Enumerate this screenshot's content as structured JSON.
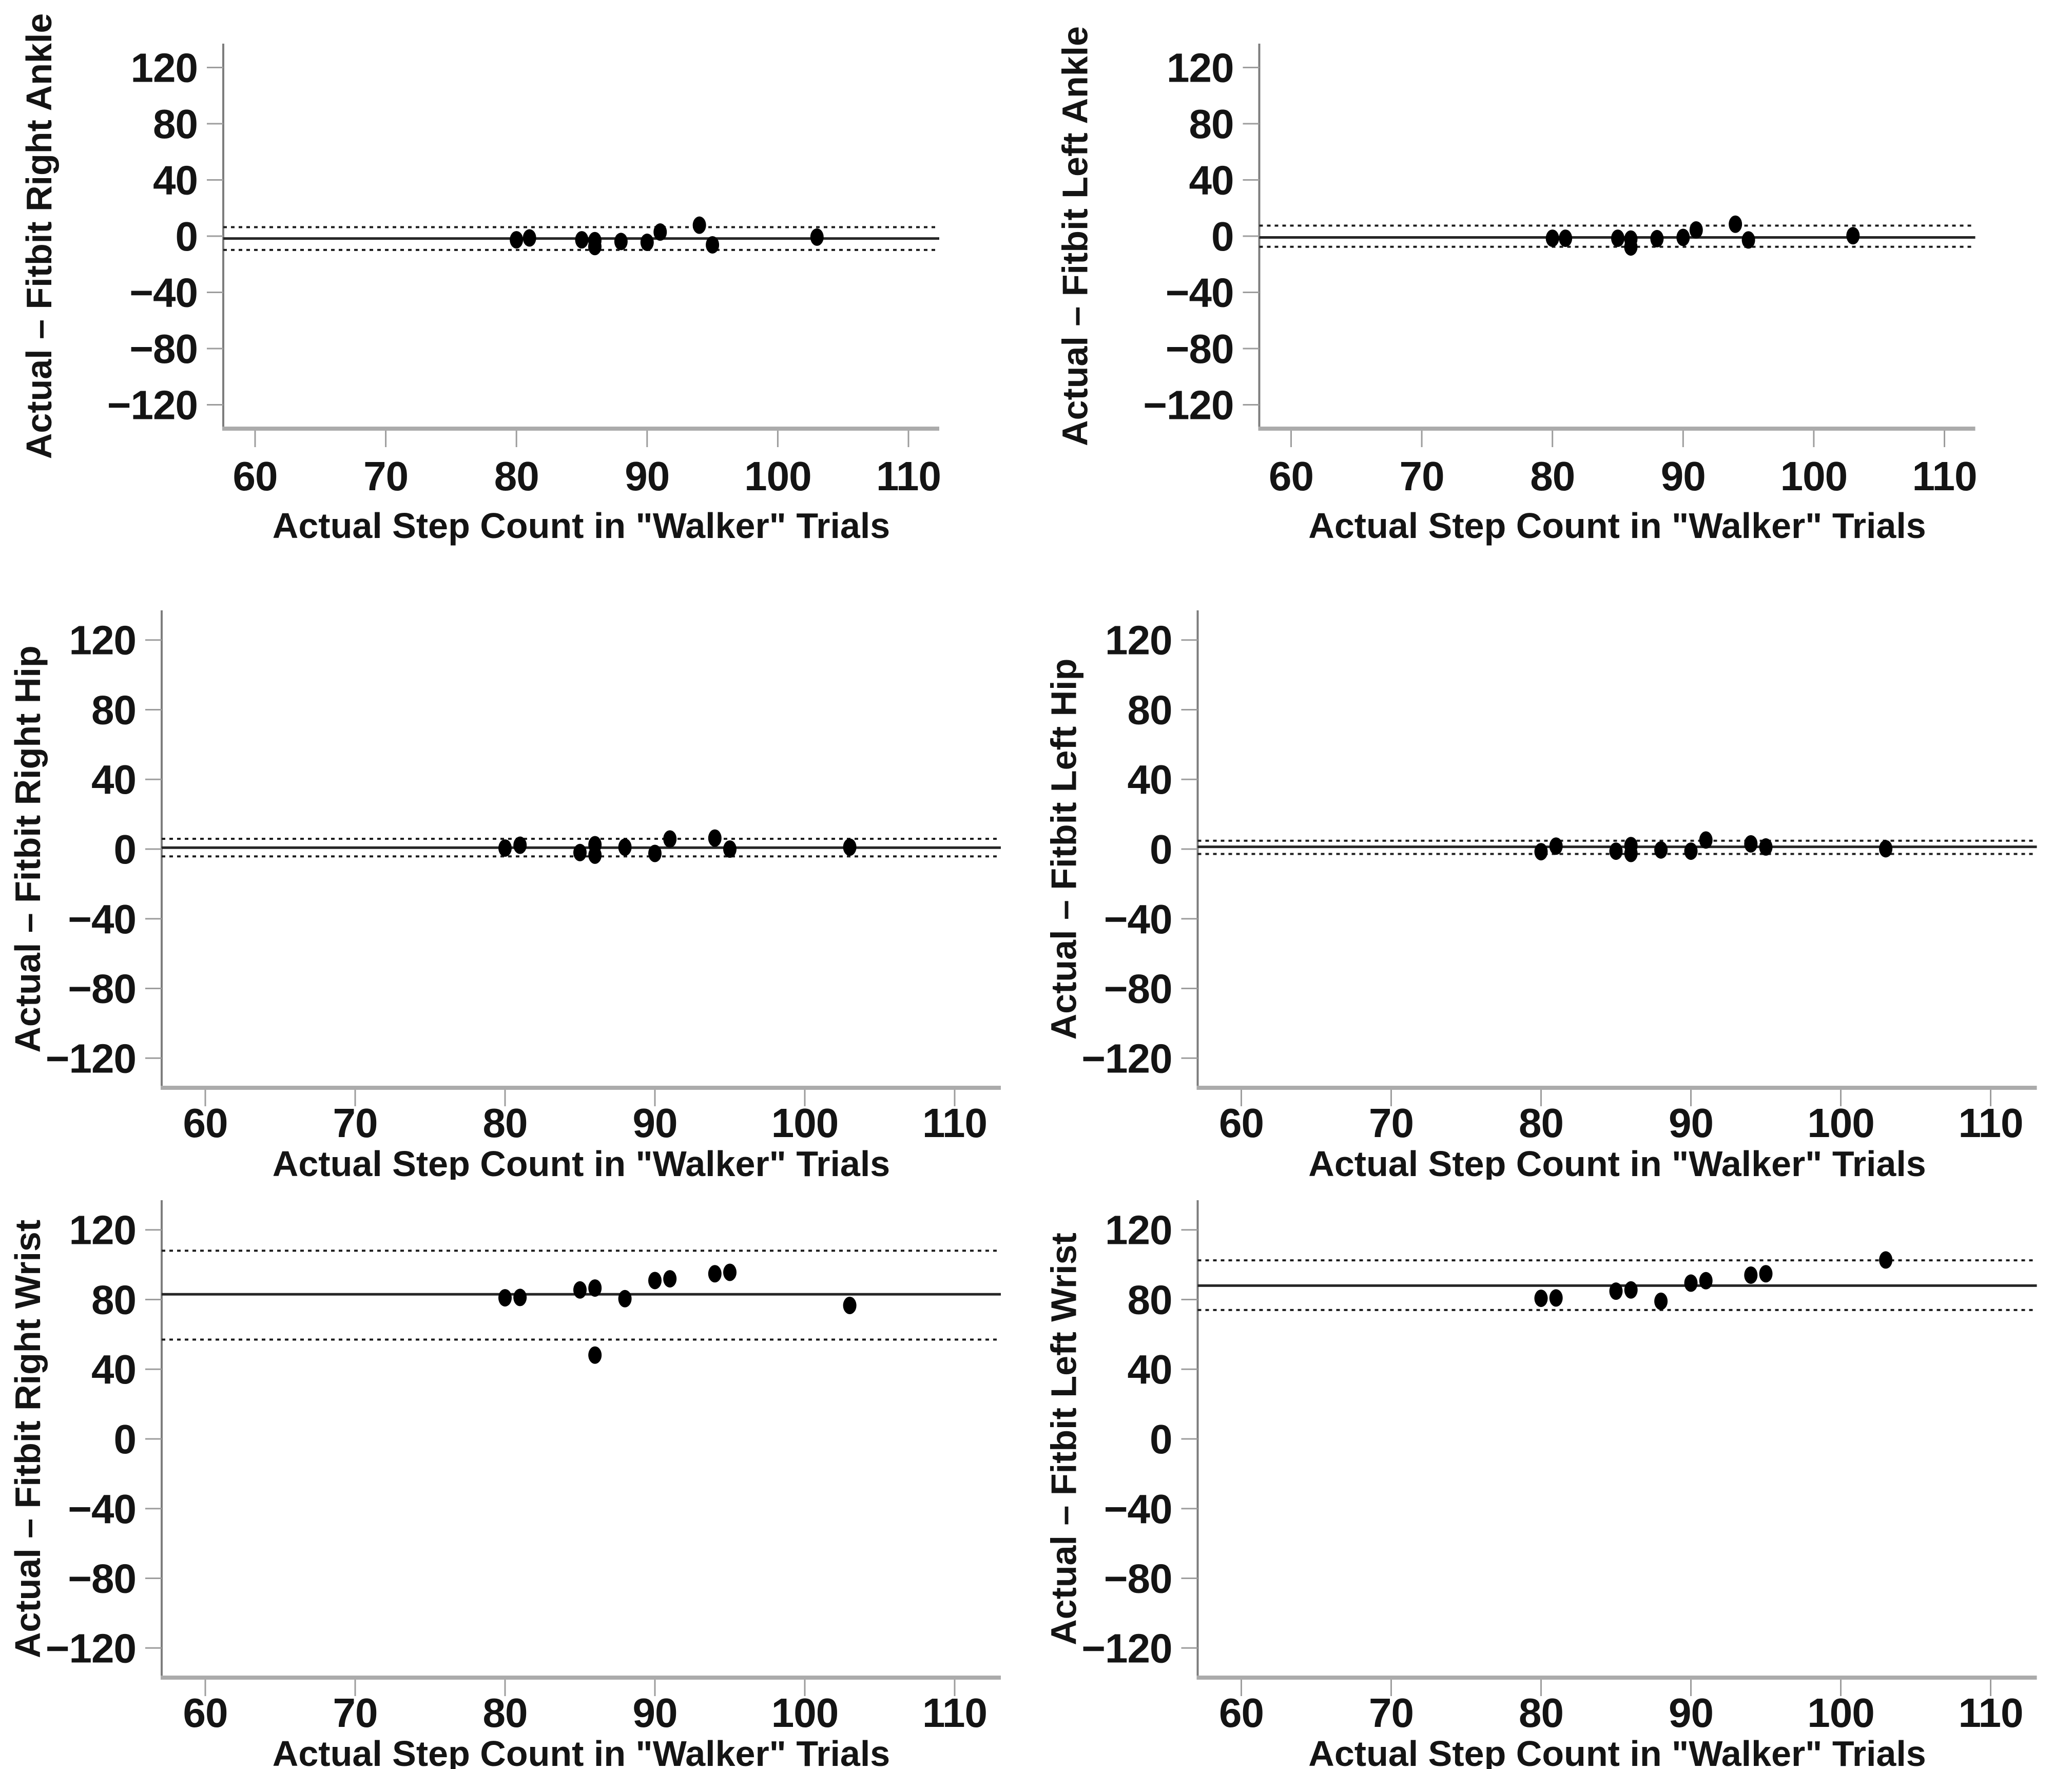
{
  "chart_data": {
    "type": "scatter",
    "layout": "2x3-grid",
    "title": "",
    "xlabel": "Actual Step Count in \"Walker\" Trials",
    "xlim": [
      57,
      113
    ],
    "ylim": [
      -140,
      140
    ],
    "x_ticks": [
      60,
      70,
      80,
      90,
      100,
      110
    ],
    "y_ticks": [
      120,
      80,
      40,
      0,
      -40,
      -80,
      -120
    ],
    "grid": "off",
    "legend": "none",
    "marker_color": "#000000",
    "mean_line_style": "solid",
    "loa_line_style": "dashed",
    "panels": [
      {
        "id": "right-ankle",
        "ylabel": "Actual – Fitbit Right Ankle",
        "mean": -1.7,
        "loa_upper": 6.4,
        "loa_lower": -9.8,
        "points": [
          [
            80,
            -2.6
          ],
          [
            81,
            -1.3
          ],
          [
            85,
            -2.6
          ],
          [
            86,
            -3.2
          ],
          [
            86,
            -7.4
          ],
          [
            88,
            -3.8
          ],
          [
            90,
            -4.4
          ],
          [
            91,
            2.9
          ],
          [
            94,
            7.8
          ],
          [
            95,
            -6.2
          ],
          [
            103,
            -0.7
          ]
        ]
      },
      {
        "id": "left-ankle",
        "ylabel": "Actual – Fitbit Left Ankle",
        "mean": -0.9,
        "loa_upper": 7.5,
        "loa_lower": -7.6,
        "points": [
          [
            80,
            -1.5
          ],
          [
            81,
            -1.5
          ],
          [
            85,
            -1.5
          ],
          [
            86,
            -2.1
          ],
          [
            86,
            -7.7
          ],
          [
            88,
            -1.8
          ],
          [
            90,
            -0.9
          ],
          [
            91,
            4.4
          ],
          [
            94,
            8.5
          ],
          [
            95,
            -2.7
          ],
          [
            103,
            0.3
          ]
        ]
      },
      {
        "id": "right-hip",
        "ylabel": "Actual – Fitbit Right Hip",
        "mean": 0.8,
        "loa_upper": 5.9,
        "loa_lower": -4.2,
        "points": [
          [
            80,
            0.6
          ],
          [
            81,
            2.2
          ],
          [
            85,
            -2.0
          ],
          [
            86,
            2.5
          ],
          [
            86,
            -3.5
          ],
          [
            88,
            1.1
          ],
          [
            90,
            -2.5
          ],
          [
            91,
            5.8
          ],
          [
            94,
            6.3
          ],
          [
            95,
            0.0
          ],
          [
            103,
            1.1
          ]
        ]
      },
      {
        "id": "left-hip",
        "ylabel": "Actual – Fitbit Left Hip",
        "mean": 1.3,
        "loa_upper": 4.8,
        "loa_lower": -2.8,
        "points": [
          [
            80,
            -1.5
          ],
          [
            81,
            1.7
          ],
          [
            85,
            -1.2
          ],
          [
            86,
            2.0
          ],
          [
            86,
            -2.5
          ],
          [
            88,
            -0.5
          ],
          [
            90,
            -1.2
          ],
          [
            91,
            5.2
          ],
          [
            94,
            3.0
          ],
          [
            95,
            1.2
          ],
          [
            103,
            0.2
          ]
        ]
      },
      {
        "id": "right-wrist",
        "ylabel": "Actual – Fitbit Right Wrist",
        "mean": 83,
        "loa_upper": 108,
        "loa_lower": 57,
        "points": [
          [
            80,
            81.0
          ],
          [
            81,
            81.2
          ],
          [
            85,
            85.5
          ],
          [
            86,
            86.6
          ],
          [
            86,
            48.1
          ],
          [
            88,
            80.5
          ],
          [
            90,
            90.9
          ],
          [
            91,
            91.9
          ],
          [
            94,
            94.8
          ],
          [
            95,
            95.6
          ],
          [
            103,
            76.6
          ]
        ]
      },
      {
        "id": "left-wrist",
        "ylabel": "Actual – Fitbit Left Wrist",
        "mean": 88,
        "loa_upper": 102.5,
        "loa_lower": 74,
        "points": [
          [
            80,
            80.7
          ],
          [
            81,
            80.9
          ],
          [
            85,
            84.8
          ],
          [
            86,
            85.5
          ],
          [
            88,
            79.0
          ],
          [
            90,
            89.4
          ],
          [
            91,
            90.8
          ],
          [
            94,
            94.0
          ],
          [
            95,
            94.8
          ],
          [
            103,
            102.7
          ]
        ]
      }
    ]
  }
}
